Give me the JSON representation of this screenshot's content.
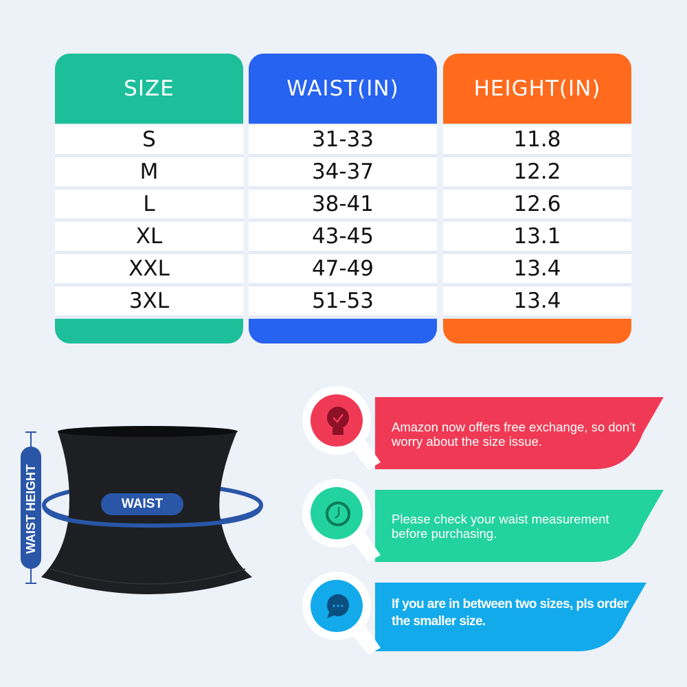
{
  "table": {
    "headers": [
      "SIZE",
      "WAIST(IN)",
      "HEIGHT(IN)"
    ],
    "header_colors": [
      "#1dbf9b",
      "#2663f0",
      "#ff6a1c"
    ],
    "rows": [
      [
        "S",
        "31-33",
        "11.8"
      ],
      [
        "M",
        "34-37",
        "12.2"
      ],
      [
        "L",
        "38-41",
        "12.6"
      ],
      [
        "XL",
        "43-45",
        "13.1"
      ],
      [
        "XXL",
        "47-49",
        "13.4"
      ],
      [
        "3XL",
        "51-53",
        "13.4"
      ]
    ]
  },
  "product": {
    "waist_label": "WAIST",
    "height_label": "WAIST HEIGHT",
    "accent": "#2a56a8"
  },
  "tips": [
    {
      "icon": "lightbulb-check-icon",
      "color": "#f03a55",
      "text": "Amazon now offers free exchange, so don't worry about the size issue."
    },
    {
      "icon": "clock-icon",
      "color": "#22d29f",
      "text": "Please check your waist measurement before purchasing."
    },
    {
      "icon": "chat-bubble-icon",
      "color": "#12aaea",
      "text": "If you are in between two sizes, pls order the smaller size."
    }
  ]
}
